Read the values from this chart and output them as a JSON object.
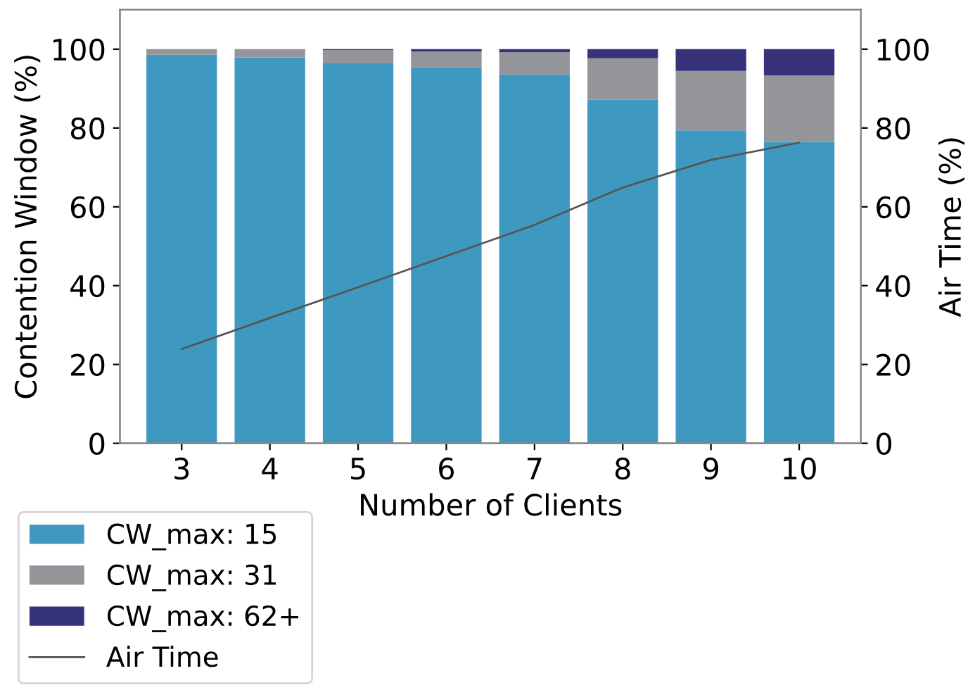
{
  "chart_data": {
    "type": "bar",
    "stacked": true,
    "xlabel": "Number of Clients",
    "ylabel": "Contention Window (%)",
    "y2label": "Air Time (%)",
    "categories": [
      "3",
      "4",
      "5",
      "6",
      "7",
      "8",
      "9",
      "10"
    ],
    "series": [
      {
        "name": "CW_max: 15",
        "color": "#3f98c0",
        "values": [
          98.6,
          97.9,
          96.4,
          95.4,
          93.6,
          87.2,
          79.4,
          76.5
        ]
      },
      {
        "name": "CW_max: 31",
        "color": "#939598",
        "values": [
          1.4,
          2.1,
          3.4,
          4.0,
          5.6,
          10.5,
          15.1,
          16.8
        ]
      },
      {
        "name": "CW_max: 62+",
        "color": "#37337a",
        "values": [
          0,
          0,
          0.2,
          0.6,
          0.8,
          2.3,
          5.5,
          6.7
        ]
      },
      {
        "name": "Air Time",
        "type": "line",
        "axis": "y2",
        "color": "#555555",
        "values": [
          23.9,
          31.8,
          39.6,
          47.5,
          55.4,
          64.9,
          71.9,
          76.3
        ]
      }
    ],
    "ylim": [
      0,
      110
    ],
    "yticks": [
      0,
      20,
      40,
      60,
      80,
      100
    ],
    "y2lim": [
      0,
      110
    ],
    "y2ticks": [
      0,
      20,
      40,
      60,
      80,
      100
    ],
    "grid": false,
    "legend": "bottom left"
  }
}
